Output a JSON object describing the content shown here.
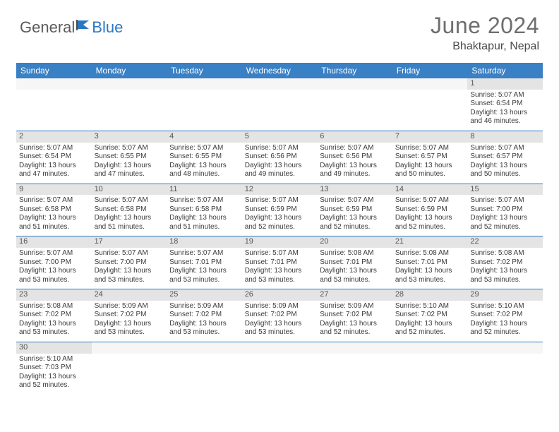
{
  "logo": {
    "part1": "General",
    "part2": "Blue"
  },
  "title": "June 2024",
  "location": "Bhaktapur, Nepal",
  "colors": {
    "header_bg": "#3a80c4",
    "border": "#2b78c2",
    "daynum_bg": "#e4e4e4",
    "text": "#3a3a3a",
    "title_color": "#6e6e6e"
  },
  "weekdays": [
    "Sunday",
    "Monday",
    "Tuesday",
    "Wednesday",
    "Thursday",
    "Friday",
    "Saturday"
  ],
  "weeks": [
    [
      null,
      null,
      null,
      null,
      null,
      null,
      {
        "n": "1",
        "sr": "Sunrise: 5:07 AM",
        "ss": "Sunset: 6:54 PM",
        "d1": "Daylight: 13 hours",
        "d2": "and 46 minutes."
      }
    ],
    [
      {
        "n": "2",
        "sr": "Sunrise: 5:07 AM",
        "ss": "Sunset: 6:54 PM",
        "d1": "Daylight: 13 hours",
        "d2": "and 47 minutes."
      },
      {
        "n": "3",
        "sr": "Sunrise: 5:07 AM",
        "ss": "Sunset: 6:55 PM",
        "d1": "Daylight: 13 hours",
        "d2": "and 47 minutes."
      },
      {
        "n": "4",
        "sr": "Sunrise: 5:07 AM",
        "ss": "Sunset: 6:55 PM",
        "d1": "Daylight: 13 hours",
        "d2": "and 48 minutes."
      },
      {
        "n": "5",
        "sr": "Sunrise: 5:07 AM",
        "ss": "Sunset: 6:56 PM",
        "d1": "Daylight: 13 hours",
        "d2": "and 49 minutes."
      },
      {
        "n": "6",
        "sr": "Sunrise: 5:07 AM",
        "ss": "Sunset: 6:56 PM",
        "d1": "Daylight: 13 hours",
        "d2": "and 49 minutes."
      },
      {
        "n": "7",
        "sr": "Sunrise: 5:07 AM",
        "ss": "Sunset: 6:57 PM",
        "d1": "Daylight: 13 hours",
        "d2": "and 50 minutes."
      },
      {
        "n": "8",
        "sr": "Sunrise: 5:07 AM",
        "ss": "Sunset: 6:57 PM",
        "d1": "Daylight: 13 hours",
        "d2": "and 50 minutes."
      }
    ],
    [
      {
        "n": "9",
        "sr": "Sunrise: 5:07 AM",
        "ss": "Sunset: 6:58 PM",
        "d1": "Daylight: 13 hours",
        "d2": "and 51 minutes."
      },
      {
        "n": "10",
        "sr": "Sunrise: 5:07 AM",
        "ss": "Sunset: 6:58 PM",
        "d1": "Daylight: 13 hours",
        "d2": "and 51 minutes."
      },
      {
        "n": "11",
        "sr": "Sunrise: 5:07 AM",
        "ss": "Sunset: 6:58 PM",
        "d1": "Daylight: 13 hours",
        "d2": "and 51 minutes."
      },
      {
        "n": "12",
        "sr": "Sunrise: 5:07 AM",
        "ss": "Sunset: 6:59 PM",
        "d1": "Daylight: 13 hours",
        "d2": "and 52 minutes."
      },
      {
        "n": "13",
        "sr": "Sunrise: 5:07 AM",
        "ss": "Sunset: 6:59 PM",
        "d1": "Daylight: 13 hours",
        "d2": "and 52 minutes."
      },
      {
        "n": "14",
        "sr": "Sunrise: 5:07 AM",
        "ss": "Sunset: 6:59 PM",
        "d1": "Daylight: 13 hours",
        "d2": "and 52 minutes."
      },
      {
        "n": "15",
        "sr": "Sunrise: 5:07 AM",
        "ss": "Sunset: 7:00 PM",
        "d1": "Daylight: 13 hours",
        "d2": "and 52 minutes."
      }
    ],
    [
      {
        "n": "16",
        "sr": "Sunrise: 5:07 AM",
        "ss": "Sunset: 7:00 PM",
        "d1": "Daylight: 13 hours",
        "d2": "and 53 minutes."
      },
      {
        "n": "17",
        "sr": "Sunrise: 5:07 AM",
        "ss": "Sunset: 7:00 PM",
        "d1": "Daylight: 13 hours",
        "d2": "and 53 minutes."
      },
      {
        "n": "18",
        "sr": "Sunrise: 5:07 AM",
        "ss": "Sunset: 7:01 PM",
        "d1": "Daylight: 13 hours",
        "d2": "and 53 minutes."
      },
      {
        "n": "19",
        "sr": "Sunrise: 5:07 AM",
        "ss": "Sunset: 7:01 PM",
        "d1": "Daylight: 13 hours",
        "d2": "and 53 minutes."
      },
      {
        "n": "20",
        "sr": "Sunrise: 5:08 AM",
        "ss": "Sunset: 7:01 PM",
        "d1": "Daylight: 13 hours",
        "d2": "and 53 minutes."
      },
      {
        "n": "21",
        "sr": "Sunrise: 5:08 AM",
        "ss": "Sunset: 7:01 PM",
        "d1": "Daylight: 13 hours",
        "d2": "and 53 minutes."
      },
      {
        "n": "22",
        "sr": "Sunrise: 5:08 AM",
        "ss": "Sunset: 7:02 PM",
        "d1": "Daylight: 13 hours",
        "d2": "and 53 minutes."
      }
    ],
    [
      {
        "n": "23",
        "sr": "Sunrise: 5:08 AM",
        "ss": "Sunset: 7:02 PM",
        "d1": "Daylight: 13 hours",
        "d2": "and 53 minutes."
      },
      {
        "n": "24",
        "sr": "Sunrise: 5:09 AM",
        "ss": "Sunset: 7:02 PM",
        "d1": "Daylight: 13 hours",
        "d2": "and 53 minutes."
      },
      {
        "n": "25",
        "sr": "Sunrise: 5:09 AM",
        "ss": "Sunset: 7:02 PM",
        "d1": "Daylight: 13 hours",
        "d2": "and 53 minutes."
      },
      {
        "n": "26",
        "sr": "Sunrise: 5:09 AM",
        "ss": "Sunset: 7:02 PM",
        "d1": "Daylight: 13 hours",
        "d2": "and 53 minutes."
      },
      {
        "n": "27",
        "sr": "Sunrise: 5:09 AM",
        "ss": "Sunset: 7:02 PM",
        "d1": "Daylight: 13 hours",
        "d2": "and 52 minutes."
      },
      {
        "n": "28",
        "sr": "Sunrise: 5:10 AM",
        "ss": "Sunset: 7:02 PM",
        "d1": "Daylight: 13 hours",
        "d2": "and 52 minutes."
      },
      {
        "n": "29",
        "sr": "Sunrise: 5:10 AM",
        "ss": "Sunset: 7:02 PM",
        "d1": "Daylight: 13 hours",
        "d2": "and 52 minutes."
      }
    ],
    [
      {
        "n": "30",
        "sr": "Sunrise: 5:10 AM",
        "ss": "Sunset: 7:03 PM",
        "d1": "Daylight: 13 hours",
        "d2": "and 52 minutes."
      },
      null,
      null,
      null,
      null,
      null,
      null
    ]
  ]
}
